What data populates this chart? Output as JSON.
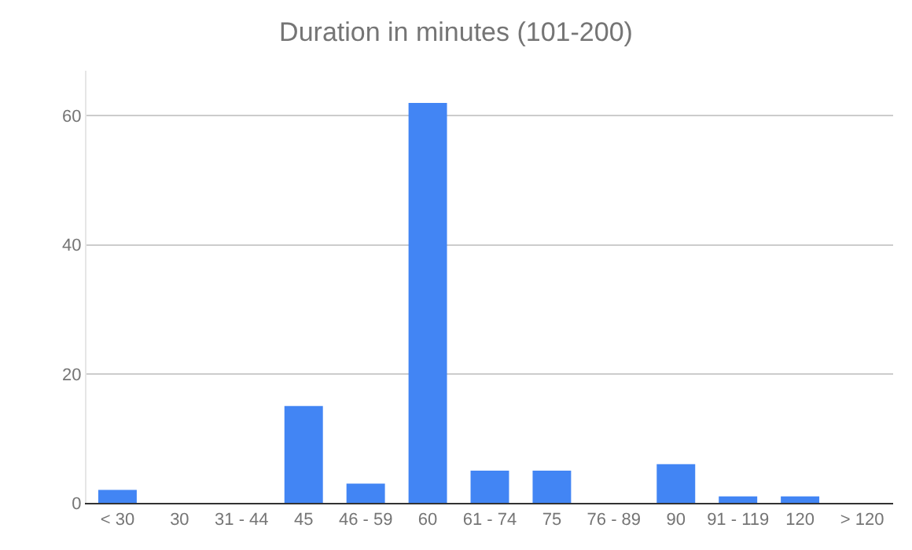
{
  "chart_data": {
    "type": "bar",
    "title": "Duration in minutes (101-200)",
    "categories": [
      "< 30",
      "30",
      "31 - 44",
      "45",
      "46 - 59",
      "60",
      "61 - 74",
      "75",
      "76 - 89",
      "90",
      "91 - 119",
      "120",
      "> 120"
    ],
    "values": [
      2,
      0,
      0,
      15,
      3,
      62,
      5,
      5,
      0,
      6,
      1,
      1,
      0
    ],
    "color": "#4285f4",
    "ylim": [
      0,
      67
    ],
    "yticks": [
      0,
      20,
      40,
      60
    ],
    "grid": "y"
  }
}
